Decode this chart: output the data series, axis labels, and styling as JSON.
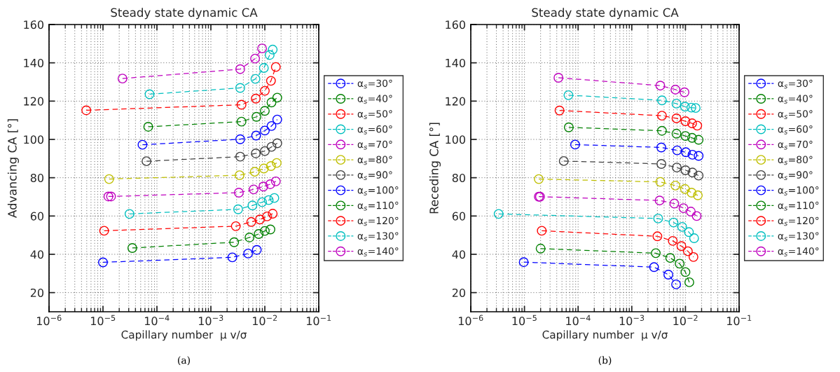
{
  "chart_data": [
    {
      "type": "line",
      "title": "Steady state dynamic CA",
      "xlabel": "Capillary number  μ v/σ",
      "ylabel": "Advancing CA [°]",
      "annotations": [
        "(a)"
      ],
      "log": "x",
      "grid": true,
      "legend": "right",
      "marker": "circle",
      "line_style": "dashed",
      "xlim": [
        1e-06,
        0.1
      ],
      "xticks": [
        {
          "value": 1e-06,
          "label": "10$^{−6}$"
        },
        {
          "value": 1e-05,
          "label": "10$^{−5}$"
        },
        {
          "value": 0.0001,
          "label": "10$^{−4}$"
        },
        {
          "value": 0.001,
          "label": "10$^{−3}$"
        },
        {
          "value": 0.01,
          "label": "10$^{−2}$"
        },
        {
          "value": 0.1,
          "label": "10$^{−1}$"
        }
      ],
      "ylim": [
        10,
        160
      ],
      "yticks": [
        20,
        40,
        60,
        80,
        100,
        120,
        140,
        160
      ],
      "series": [
        {
          "name": "α$_{s}$=30°",
          "color": "#0000ff",
          "x": [
            1e-05,
            0.0025,
            0.0049,
            0.0071
          ],
          "values": [
            35.8,
            38.4,
            40.4,
            42.3
          ]
        },
        {
          "name": "α$_{s}$=40°",
          "color": "#008000",
          "x": [
            3.5e-05,
            0.0027,
            0.0052,
            0.0077,
            0.01,
            0.0127
          ],
          "values": [
            43.3,
            46.3,
            48.8,
            50.6,
            52.2,
            53.0
          ]
        },
        {
          "name": "α$_{s}$=50°",
          "color": "#ff0000",
          "x": [
            1.05e-05,
            0.0029,
            0.0056,
            0.0081,
            0.011,
            0.014
          ],
          "values": [
            52.3,
            54.7,
            56.9,
            58.2,
            59.8,
            61.2
          ]
        },
        {
          "name": "α$_{s}$=60°",
          "color": "#00bfbf",
          "x": [
            3.1e-05,
            0.0032,
            0.0059,
            0.0089,
            0.0118,
            0.015
          ],
          "values": [
            61.1,
            63.5,
            65.5,
            67.2,
            68.3,
            69.4
          ]
        },
        {
          "name": "α$_{s}$=70°",
          "color": "#bf00bf",
          "x": [
            1.26e-05,
            1.41e-05,
            0.0033,
            0.0062,
            0.0094,
            0.0126,
            0.016
          ],
          "values": [
            70.2,
            70.2,
            72.2,
            73.9,
            75.4,
            76.6,
            78.1
          ]
        },
        {
          "name": "α$_{s}$=80°",
          "color": "#bfbf00",
          "x": [
            1.3e-05,
            0.0034,
            0.0065,
            0.0096,
            0.013,
            0.0166
          ],
          "values": [
            79.3,
            81.3,
            83.1,
            84.8,
            86.1,
            87.7
          ]
        },
        {
          "name": "α$_{s}$=90°",
          "color": "#404040",
          "x": [
            6.4e-05,
            0.0035,
            0.0068,
            0.01,
            0.0133,
            0.017
          ],
          "values": [
            88.6,
            91.0,
            92.7,
            93.9,
            96.1,
            98.0
          ]
        },
        {
          "name": "α$_{s}$=100°",
          "color": "#0000ff",
          "x": [
            5.4e-05,
            0.0035,
            0.0069,
            0.01,
            0.0133,
            0.017
          ],
          "values": [
            97.2,
            100.1,
            102.0,
            104.6,
            107.0,
            110.4
          ]
        },
        {
          "name": "α$_{s}$=110°",
          "color": "#008000",
          "x": [
            6.9e-05,
            0.0037,
            0.007,
            0.01,
            0.0133,
            0.017
          ],
          "values": [
            106.6,
            109.3,
            111.8,
            114.9,
            119.3,
            121.8
          ]
        },
        {
          "name": "α$_{s}$=120°",
          "color": "#ff0000",
          "x": [
            4.9e-06,
            0.0037,
            0.0068,
            0.01,
            0.013,
            0.016
          ],
          "values": [
            115.2,
            118.1,
            121.3,
            125.4,
            130.6,
            137.8
          ]
        },
        {
          "name": "α$_{s}$=130°",
          "color": "#00bfbf",
          "x": [
            7.3e-05,
            0.0035,
            0.0067,
            0.0096,
            0.0123,
            0.014
          ],
          "values": [
            123.6,
            126.9,
            131.6,
            137.3,
            144.1,
            146.9
          ]
        },
        {
          "name": "α$_{s}$=140°",
          "color": "#bf00bf",
          "x": [
            2.3e-05,
            0.0035,
            0.0066,
            0.0089
          ],
          "values": [
            131.8,
            136.7,
            142.2,
            147.5
          ]
        }
      ]
    },
    {
      "type": "line",
      "title": "Steady state dynamic CA",
      "xlabel": "Capillary number  μ v/σ",
      "ylabel": "Receding CA [°]",
      "annotations": [
        "(b)"
      ],
      "log": "x",
      "grid": true,
      "legend": "right",
      "marker": "circle",
      "line_style": "dashed",
      "xlim": [
        1e-06,
        0.1
      ],
      "xticks": [
        {
          "value": 1e-06,
          "label": "10$^{−6}$"
        },
        {
          "value": 1e-05,
          "label": "10$^{−5}$"
        },
        {
          "value": 0.0001,
          "label": "10$^{−4}$"
        },
        {
          "value": 0.001,
          "label": "10$^{−3}$"
        },
        {
          "value": 0.01,
          "label": "10$^{−2}$"
        },
        {
          "value": 0.1,
          "label": "10$^{−1}$"
        }
      ],
      "ylim": [
        10,
        160
      ],
      "yticks": [
        20,
        40,
        60,
        80,
        100,
        120,
        140,
        160
      ],
      "series": [
        {
          "name": "α$_{s}$=30°",
          "color": "#0000ff",
          "x": [
            9.7e-06,
            0.0026,
            0.0048,
            0.0067
          ],
          "values": [
            35.9,
            33.3,
            29.4,
            24.3
          ]
        },
        {
          "name": "α$_{s}$=40°",
          "color": "#008000",
          "x": [
            2e-05,
            0.0028,
            0.0052,
            0.0078,
            0.01,
            0.0118
          ],
          "values": [
            43.0,
            40.6,
            38.1,
            35.1,
            30.7,
            25.4
          ]
        },
        {
          "name": "α$_{s}$=50°",
          "color": "#ff0000",
          "x": [
            2.1e-05,
            0.003,
            0.0058,
            0.0084,
            0.0111,
            0.0141
          ],
          "values": [
            52.3,
            49.4,
            47.0,
            44.3,
            41.6,
            38.6
          ]
        },
        {
          "name": "α$_{s}$=60°",
          "color": "#00bfbf",
          "x": [
            3.3e-06,
            0.0031,
            0.006,
            0.0087,
            0.0116,
            0.0145
          ],
          "values": [
            61.1,
            58.7,
            56.6,
            54.3,
            51.6,
            48.4
          ]
        },
        {
          "name": "α$_{s}$=70°",
          "color": "#bf00bf",
          "x": [
            1.85e-05,
            1.95e-05,
            0.0033,
            0.0062,
            0.0092,
            0.0126,
            0.0162
          ],
          "values": [
            70.1,
            70.1,
            68.1,
            66.5,
            64.1,
            62.3,
            60.0
          ]
        },
        {
          "name": "α$_{s}$=80°",
          "color": "#bfbf00",
          "x": [
            1.85e-05,
            0.0034,
            0.0065,
            0.0098,
            0.013,
            0.017
          ],
          "values": [
            79.3,
            77.8,
            75.9,
            74.1,
            72.2,
            70.8
          ]
        },
        {
          "name": "α$_{s}$=90°",
          "color": "#404040",
          "x": [
            5.4e-05,
            0.00356,
            0.0069,
            0.01,
            0.0135,
            0.0176
          ],
          "values": [
            88.7,
            87.2,
            85.3,
            83.9,
            82.7,
            81.1
          ]
        },
        {
          "name": "α$_{s}$=100°",
          "color": "#0000ff",
          "x": [
            8.8e-05,
            0.00355,
            0.007,
            0.0102,
            0.0135,
            0.0176
          ],
          "values": [
            97.3,
            95.8,
            94.3,
            93.3,
            92.0,
            91.4
          ]
        },
        {
          "name": "α$_{s}$=110°",
          "color": "#008000",
          "x": [
            6.7e-05,
            0.00365,
            0.0068,
            0.01,
            0.0133,
            0.0176
          ],
          "values": [
            106.3,
            104.5,
            103.0,
            101.8,
            100.8,
            99.8
          ]
        },
        {
          "name": "α$_{s}$=120°",
          "color": "#ff0000",
          "x": [
            4.5e-05,
            0.00365,
            0.0068,
            0.01,
            0.0133,
            0.0166
          ],
          "values": [
            115.1,
            112.4,
            111.0,
            109.5,
            108.4,
            107.2
          ]
        },
        {
          "name": "α$_{s}$=130°",
          "color": "#00bfbf",
          "x": [
            6.6e-05,
            0.00365,
            0.0068,
            0.0098,
            0.0129,
            0.0155
          ],
          "values": [
            123.1,
            120.4,
            118.7,
            117.1,
            116.6,
            116.4
          ]
        },
        {
          "name": "α$_{s}$=140°",
          "color": "#bf00bf",
          "x": [
            4.3e-05,
            0.0034,
            0.0065,
            0.0096
          ],
          "values": [
            132.2,
            128.1,
            126.0,
            124.6
          ]
        }
      ]
    }
  ]
}
